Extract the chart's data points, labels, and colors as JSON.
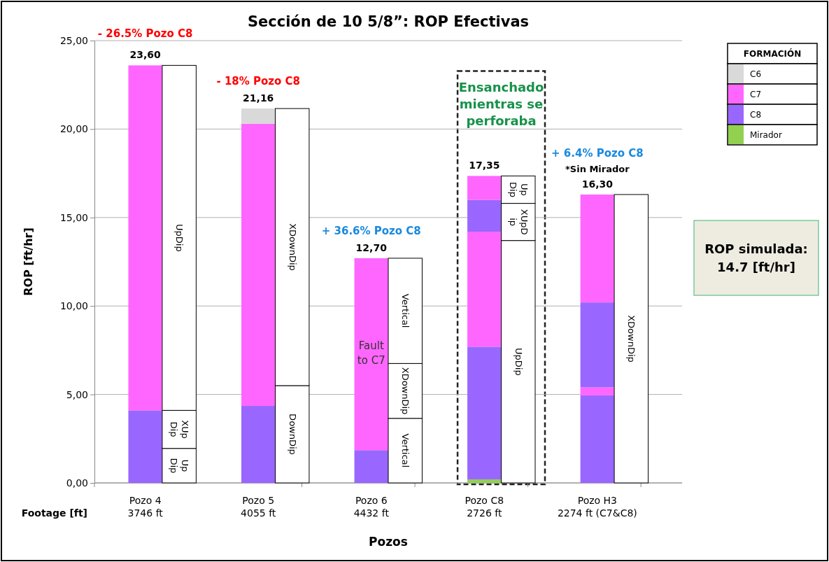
{
  "chart_data": {
    "type": "bar",
    "stacked": true,
    "title": "Sección de 10 5/8”: ROP Efectivas",
    "xlabel": "Pozos",
    "ylabel": "ROP [ft/hr]",
    "legend_title": "FORMACIÓN",
    "legend": "top right",
    "grid": "y",
    "categories": [
      "Pozo 4\n3746 ft",
      null,
      "Pozo 5\n4055 ft",
      null,
      "Pozo 6\n4432 ft",
      null,
      "Pozo C8\n2726 ft",
      null,
      "Pozo H3\n2274 ft (C7&C8)",
      null
    ],
    "ylim": [
      0,
      25
    ],
    "yticks": [
      {
        "value": 0,
        "label": "0,00"
      },
      {
        "value": 5,
        "label": "5,00"
      },
      {
        "value": 10,
        "label": "10,00"
      },
      {
        "value": 15,
        "label": "15,00"
      },
      {
        "value": 20,
        "label": "20,00"
      },
      {
        "value": 25,
        "label": "25,00"
      }
    ],
    "series": [
      {
        "name": "Mirador",
        "color": "#92d050",
        "values": [
          0,
          null,
          0,
          null,
          0,
          null,
          0.2,
          null,
          0,
          null
        ]
      },
      {
        "name": "C8",
        "color": "#9966ff",
        "values": [
          4.1,
          null,
          4.35,
          null,
          1.85,
          null,
          7.5,
          null,
          4.95,
          null
        ]
      },
      {
        "name": "C7",
        "color": "#ff66ff",
        "values": [
          19.5,
          null,
          15.95,
          null,
          10.85,
          null,
          6.5,
          null,
          0.45,
          null
        ]
      },
      {
        "color": "#9966ff",
        "values": [
          0,
          null,
          0,
          null,
          0,
          null,
          1.8,
          null,
          4.8,
          null
        ]
      },
      {
        "color": "#ff66ff",
        "values": [
          0,
          null,
          0,
          null,
          0,
          null,
          1.35,
          null,
          6.1,
          null
        ]
      },
      {
        "name": "C6",
        "color": "#d9d9d9",
        "values": [
          0,
          null,
          0.86,
          null,
          0,
          null,
          0,
          null,
          0,
          null
        ]
      },
      {
        "color": "#ffffff",
        "values": [
          null,
          1.95,
          null,
          5.5,
          null,
          3.65,
          null,
          13.7,
          null,
          16.3
        ],
        "value_labels": [
          null,
          "Up Dip",
          null,
          "DownDip",
          null,
          "Vertical",
          null,
          "UpDip",
          null,
          "XDownDip"
        ]
      },
      {
        "color": "#ffffff",
        "values": [
          null,
          2.15,
          null,
          15.66,
          null,
          3.1,
          null,
          2.1,
          null,
          0
        ],
        "value_labels": [
          null,
          "XUp Dip",
          null,
          "XDownDip",
          null,
          "XDownDip",
          null,
          "XUpD ip",
          null,
          null
        ]
      },
      {
        "color": "#ffffff",
        "values": [
          null,
          19.5,
          null,
          0,
          null,
          5.95,
          null,
          1.55,
          null,
          0
        ],
        "value_labels": [
          null,
          "UpDip",
          null,
          null,
          null,
          "Vertical",
          null,
          "Up Dip",
          null,
          null
        ]
      }
    ],
    "totals": [
      "23,60",
      null,
      "21,16",
      null,
      "12,70",
      null,
      "17,35",
      null,
      "16,30",
      null
    ],
    "annotations": [
      "- 26.5% Pozo C8",
      "- 18% Pozo C8",
      "+ 36.6% Pozo C8",
      "+ 6.4% Pozo C8",
      "*Sin Mirador",
      "Ensanchado mientras se perforaba",
      "Fault to C7",
      "Footage [ft]",
      "ROP simulada: 14.7 [ft/hr]"
    ]
  }
}
